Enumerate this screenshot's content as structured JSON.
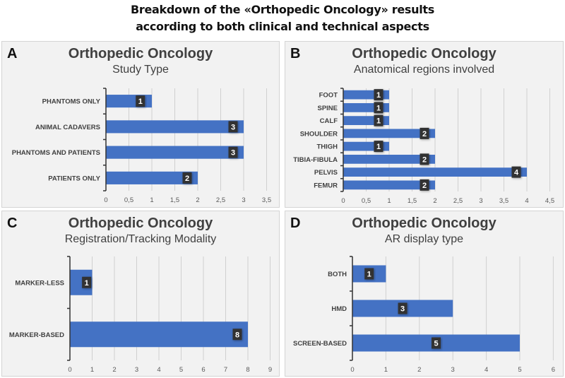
{
  "figure": {
    "title_line1": "Breakdown of the «Orthopedic Oncology» results",
    "title_line2": "according to both clinical and technical aspects"
  },
  "colors": {
    "bar": "#4472c4",
    "label_box": "#333333",
    "panel_bg": "#f2f2f2",
    "grid": "#d0d0d0"
  },
  "chart_data": [
    {
      "panel": "A",
      "type": "bar",
      "orientation": "horizontal",
      "title": "Orthopedic Oncology",
      "subtitle": "Study Type",
      "categories": [
        "PHANTOMS ONLY",
        "ANIMAL CADAVERS",
        "PHANTOMS AND PATIENTS",
        "PATIENTS ONLY"
      ],
      "values": [
        1,
        3,
        3,
        2
      ],
      "xlim": [
        0,
        3.5
      ],
      "ticks": [
        "0",
        "0,5",
        "1",
        "1,5",
        "2",
        "2,5",
        "3",
        "3,5"
      ],
      "tick_values": [
        0,
        0.5,
        1,
        1.5,
        2,
        2.5,
        3,
        3.5
      ],
      "grid": true
    },
    {
      "panel": "B",
      "type": "bar",
      "orientation": "horizontal",
      "title": "Orthopedic Oncology",
      "subtitle": "Anatomical regions involved",
      "categories": [
        "FOOT",
        "SPINE",
        "CALF",
        "SHOULDER",
        "THIGH",
        "TIBIA-FIBULA",
        "PELVIS",
        "FEMUR"
      ],
      "values": [
        1,
        1,
        1,
        2,
        1,
        2,
        4,
        2
      ],
      "xlim": [
        0,
        4.5
      ],
      "ticks": [
        "0",
        "0,5",
        "1",
        "1,5",
        "2",
        "2,5",
        "3",
        "3,5",
        "4",
        "4,5"
      ],
      "tick_values": [
        0,
        0.5,
        1,
        1.5,
        2,
        2.5,
        3,
        3.5,
        4,
        4.5
      ],
      "grid": true
    },
    {
      "panel": "C",
      "type": "bar",
      "orientation": "horizontal",
      "title": "Orthopedic Oncology",
      "subtitle": "Registration/Tracking Modality",
      "categories": [
        "MARKER-LESS",
        "MARKER-BASED"
      ],
      "values": [
        1,
        8
      ],
      "xlim": [
        0,
        9
      ],
      "ticks": [
        "0",
        "1",
        "2",
        "3",
        "4",
        "5",
        "6",
        "7",
        "8",
        "9"
      ],
      "tick_values": [
        0,
        1,
        2,
        3,
        4,
        5,
        6,
        7,
        8,
        9
      ],
      "grid": true
    },
    {
      "panel": "D",
      "type": "bar",
      "orientation": "horizontal",
      "title": "Orthopedic Oncology",
      "subtitle": "AR display type",
      "categories": [
        "BOTH",
        "HMD",
        "SCREEN-BASED"
      ],
      "values": [
        1,
        3,
        5
      ],
      "xlim": [
        0,
        6
      ],
      "ticks": [
        "0",
        "1",
        "2",
        "3",
        "4",
        "5",
        "6"
      ],
      "tick_values": [
        0,
        1,
        2,
        3,
        4,
        5,
        6
      ],
      "grid": true
    }
  ]
}
